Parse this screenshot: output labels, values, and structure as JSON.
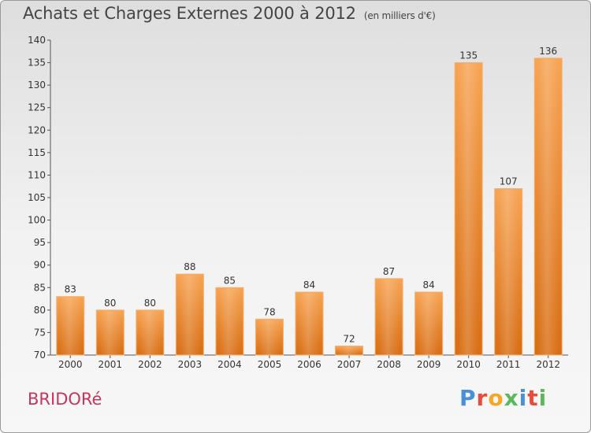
{
  "header": {
    "title": "Achats et Charges Externes 2000 à 2012",
    "unit": "(en milliers d'€)"
  },
  "footer": {
    "commune": "BRIDORé",
    "logo_letters": [
      "P",
      "r",
      "o",
      "x",
      "i",
      "t",
      "i"
    ],
    "logo_colors": [
      "#4a90d9",
      "#e84c3d",
      "#f5a623",
      "#5cb85c",
      "#4a90d9",
      "#e84c3d",
      "#5cb85c"
    ]
  },
  "chart_data": {
    "type": "bar",
    "title": "Achats et Charges Externes 2000 à 2012",
    "subtitle": "(en milliers d'€)",
    "xlabel": "",
    "ylabel": "",
    "categories": [
      "2000",
      "2001",
      "2002",
      "2003",
      "2004",
      "2005",
      "2006",
      "2007",
      "2008",
      "2009",
      "2010",
      "2011",
      "2012"
    ],
    "values": [
      83,
      80,
      80,
      88,
      85,
      78,
      84,
      72,
      87,
      84,
      135,
      107,
      136
    ],
    "ylim": [
      70,
      140
    ],
    "yticks": [
      70,
      75,
      80,
      85,
      90,
      95,
      100,
      105,
      110,
      115,
      120,
      125,
      130,
      135,
      140
    ],
    "grid": false,
    "legend": "none",
    "bar_color": "#f0923a"
  }
}
